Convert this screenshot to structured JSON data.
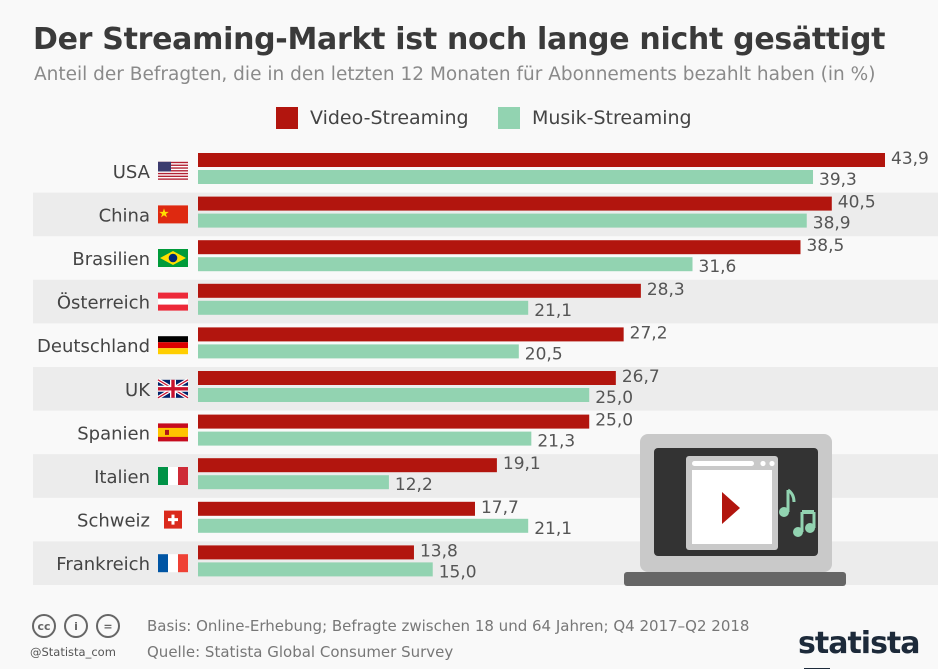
{
  "title": "Der Streaming-Markt ist noch lange nicht gesättigt",
  "subtitle": "Anteil der Befragten, die in den letzten 12 Monaten für Abonnements bezahlt haben (in %)",
  "colors": {
    "video": "#b2150e",
    "music": "#92d3b1",
    "band": "#ececec"
  },
  "chart_data": {
    "type": "bar",
    "orientation": "horizontal",
    "categories": [
      "USA",
      "China",
      "Brasilien",
      "Österreich",
      "Deutschland",
      "UK",
      "Spanien",
      "Italien",
      "Schweiz",
      "Frankreich"
    ],
    "flags": [
      "us-flag-icon",
      "china-flag-icon",
      "brazil-flag-icon",
      "austria-flag-icon",
      "germany-flag-icon",
      "uk-flag-icon",
      "spain-flag-icon",
      "italy-flag-icon",
      "switzerland-flag-icon",
      "france-flag-icon"
    ],
    "series": [
      {
        "name": "Video-Streaming",
        "values": [
          43.9,
          40.5,
          38.5,
          28.3,
          27.2,
          26.7,
          25.0,
          19.1,
          17.7,
          13.8
        ]
      },
      {
        "name": "Musik-Streaming",
        "values": [
          39.3,
          38.9,
          31.6,
          21.1,
          20.5,
          25.0,
          21.3,
          12.2,
          21.1,
          15.0
        ]
      }
    ],
    "xlim": [
      0,
      43.9
    ],
    "legend": "top",
    "grid": false,
    "data_labels": [
      "43,9",
      "40,5",
      "38,5",
      "28,3",
      "27,2",
      "26,7",
      "25,0",
      "19,1",
      "17,7",
      "13,8",
      "39,3",
      "38,9",
      "31,6",
      "21,1",
      "20,5",
      "25,0",
      "21,3",
      "12,2",
      "21,1",
      "15,0"
    ]
  },
  "footer": {
    "basis": "Basis: Online-Erhebung; Befragte zwischen 18 und 64 Jahren; Q4 2017–Q2 2018",
    "source": "Quelle: Statista Global Consumer Survey",
    "handle": "@Statista_com",
    "logo": "statista",
    "cc_icons": [
      "cc-icon",
      "by-icon",
      "nd-icon"
    ]
  }
}
